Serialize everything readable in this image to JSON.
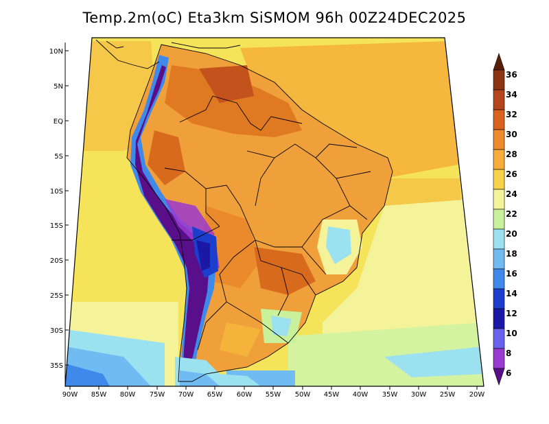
{
  "title": "Temp.2m(oC) Eta3km SiSMOM 96h 00Z24DEC2025",
  "map": {
    "lat_ticks": [
      "10N",
      "5N",
      "EQ",
      "5S",
      "10S",
      "15S",
      "20S",
      "25S",
      "30S",
      "35S"
    ],
    "lon_ticks": [
      "90W",
      "85W",
      "80W",
      "75W",
      "70W",
      "65W",
      "60W",
      "55W",
      "50W",
      "45W",
      "40W",
      "35W",
      "30W",
      "25W",
      "20W"
    ]
  },
  "colorbar": {
    "labels": [
      "36",
      "34",
      "32",
      "30",
      "28",
      "26",
      "24",
      "22",
      "20",
      "18",
      "16",
      "14",
      "12",
      "10",
      "8",
      "6"
    ],
    "colors": [
      "#5a1f08",
      "#8b3512",
      "#b5461c",
      "#d8621e",
      "#ef8a2e",
      "#f6ad3c",
      "#f8d24a",
      "#f5f39a",
      "#c9f09a",
      "#9ce1f0",
      "#70bcf2",
      "#3f89ea",
      "#1b3fcc",
      "#1c18a6",
      "#6a62ec",
      "#9a3ad0",
      "#5a0f8a"
    ]
  }
}
